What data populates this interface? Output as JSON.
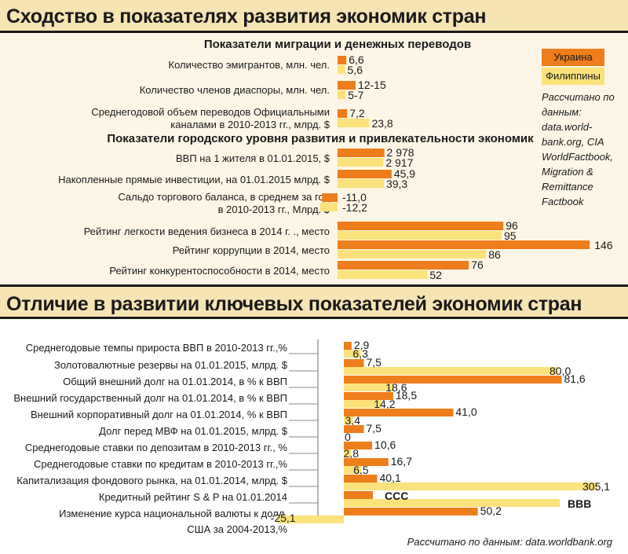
{
  "titles": {
    "main1": "Сходство в показателях развития экономик стран",
    "main2": "Отличие в развитии ключевых показателей экономик стран"
  },
  "legend": {
    "ukraine": "Украина",
    "philippines": "Филиппины"
  },
  "colors": {
    "ukraine": "#ee7d1b",
    "philippines": "#fbe27a"
  },
  "source1": "Рассчитано по данным: data.world-bank.org, CIA WorldFactbook, Migration & Remittance Factbook",
  "source2": "Рассчитано по данным: data.worldbank.org",
  "chart_data": [
    {
      "type": "bar",
      "orientation": "horizontal",
      "subtitle": "Показатели миграции и денежных переводов",
      "series": [
        {
          "name": "Украина",
          "values": [
            6.6,
            13.5,
            7.2
          ],
          "labels": [
            "6,6",
            "12-15",
            "7,2"
          ]
        },
        {
          "name": "Филиппины",
          "values": [
            5.6,
            6,
            23.8
          ],
          "labels": [
            "5,6",
            "5-7",
            "23,8"
          ]
        }
      ],
      "categories": [
        [
          "Количество эмигрантов, млн. чел."
        ],
        [
          "Количество членов диаспоры, млн. чел."
        ],
        [
          "Среднегодовой объем переводов Официальными",
          "каналами в 2010-2013 гг., млрд. $"
        ]
      ]
    },
    {
      "type": "bar",
      "orientation": "horizontal",
      "subtitle": "Показатели городского уровня развития и привлекательности экономик",
      "series": [
        {
          "name": "Украина",
          "values": [
            2978,
            45.9,
            -11.0,
            96,
            146,
            76
          ],
          "labels": [
            "2 978",
            "45,9",
            "-11,0",
            "96",
            "146",
            "76"
          ]
        },
        {
          "name": "Филиппины",
          "values": [
            2917,
            39.3,
            -12.2,
            95,
            86,
            52
          ],
          "labels": [
            "2 917",
            "39,3",
            "-12,2",
            "95",
            "86",
            "52"
          ]
        }
      ],
      "categories": [
        [
          "ВВП на 1 жителя в 01.01.2015, $"
        ],
        [
          "Накопленные прямые инвестиции, на 01.01.2015 млрд. $"
        ],
        [
          "Сальдо торгового баланса, в среднем за год",
          "в 2010-2013 гг., Млрд. $"
        ],
        [
          "Рейтинг легкости ведения бизнеса в 2014 г. ., место"
        ],
        [
          "Рейтинг коррупции в 2014, место"
        ],
        [
          "Рейтинг конкурентоспособности в 2014, место"
        ]
      ]
    },
    {
      "type": "bar",
      "orientation": "horizontal",
      "series": [
        {
          "name": "Украина",
          "values": [
            2.9,
            7.5,
            81.6,
            18.5,
            41.0,
            7.5,
            10.6,
            16.7,
            40.1,
            null,
            50.2
          ],
          "labels": [
            "2,9",
            "7,5",
            "81,6",
            "18,5",
            "41,0",
            "7,5",
            "10,6",
            "16,7",
            "40,1",
            "CCC",
            "50,2"
          ]
        },
        {
          "name": "Филиппины",
          "values": [
            6.3,
            80.0,
            18.6,
            14.2,
            3.4,
            0,
            2.8,
            6.5,
            305.1,
            null,
            -25.1
          ],
          "labels": [
            "6,3",
            "80,0",
            "18,6",
            "14,2",
            "3,4",
            "0",
            "2,8",
            "6,5",
            "305,1",
            "BBB",
            "-25,1"
          ]
        }
      ],
      "categories": [
        [
          "Среднегодовые темпы прироста ВВП в 2010-2013 гг.,%"
        ],
        [
          "Золотовалютные резервы на 01.01.2015, млрд. $"
        ],
        [
          "Общий внешний долг на 01.01.2014, в % к ВВП"
        ],
        [
          "Внешний государственный долг на 01.01.2014, в % к ВВП"
        ],
        [
          "Внешний корпоративный долг на 01.01.2014, % к ВВП"
        ],
        [
          "Долг перед МВФ на 01.01.2015, млрд. $"
        ],
        [
          "Среднегодовые ставки по депозитам в 2010-2013 гг., %"
        ],
        [
          "Среднегодовые ставки по кредитам в 2010-2013 гг.,%"
        ],
        [
          "Капитализация фондового рынка, на 01.01.2014, млрд. $"
        ],
        [
          "Кредитный рейтинг S & P на 01.01.2014"
        ],
        [
          "Изменение курса национальной валюты к долл.",
          "США за 2004-2013,%"
        ]
      ]
    }
  ]
}
